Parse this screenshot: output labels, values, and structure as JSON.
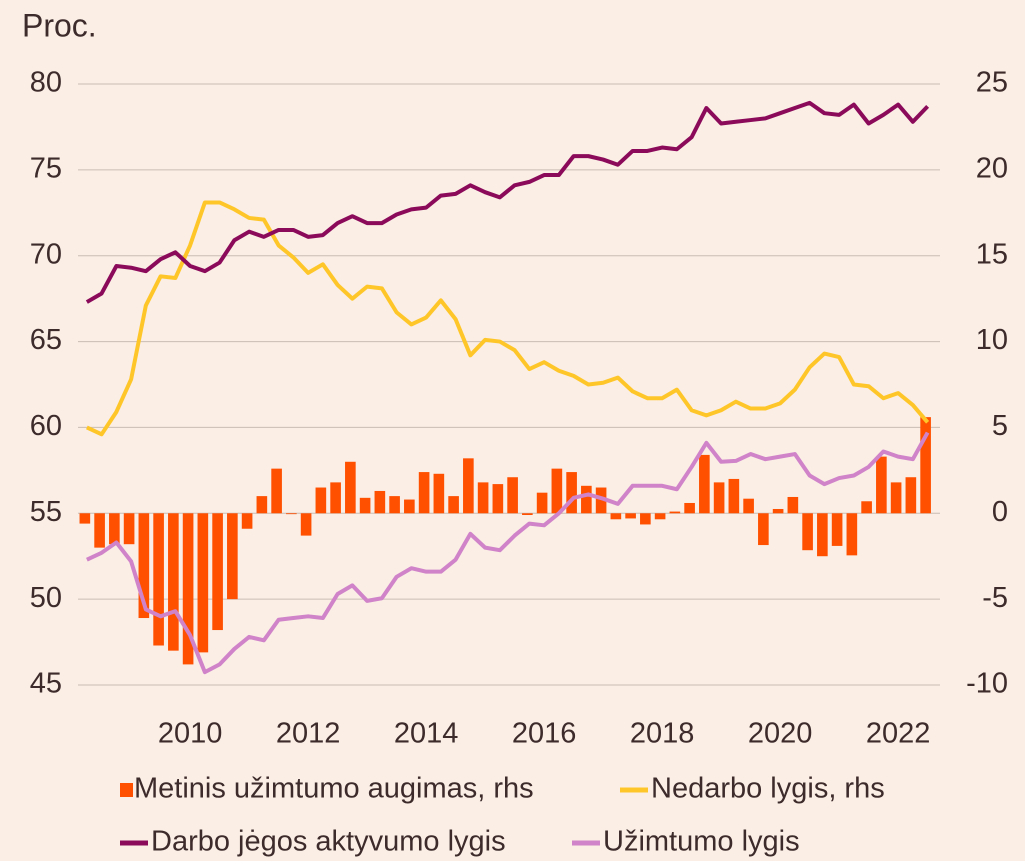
{
  "chart_data": {
    "type": "combo",
    "ylabel": "Proc.",
    "x": [
      2008.25,
      2008.5,
      2008.75,
      2009,
      2009.25,
      2009.5,
      2009.75,
      2010,
      2010.25,
      2010.5,
      2010.75,
      2011,
      2011.25,
      2011.5,
      2011.75,
      2012,
      2012.25,
      2012.5,
      2012.75,
      2013,
      2013.25,
      2013.5,
      2013.75,
      2014,
      2014.25,
      2014.5,
      2014.75,
      2015,
      2015.25,
      2015.5,
      2015.75,
      2016,
      2016.25,
      2016.5,
      2016.75,
      2017,
      2017.25,
      2017.5,
      2017.75,
      2018,
      2018.25,
      2018.5,
      2018.75,
      2019,
      2019.25,
      2019.5,
      2019.75,
      2020,
      2020.25,
      2020.5,
      2020.75,
      2021,
      2021.25,
      2021.5,
      2021.75,
      2022,
      2022.25,
      2022.5
    ],
    "xlim": [
      2008.1,
      2022.71
    ],
    "xticks": [
      2010,
      2012,
      2014,
      2016,
      2018,
      2020,
      2022
    ],
    "ylim": [
      45,
      80
    ],
    "yticks": [
      45,
      50,
      55,
      60,
      65,
      70,
      75,
      80
    ],
    "y2lim": [
      -10,
      25
    ],
    "y2ticks": [
      -10,
      -5,
      0,
      5,
      10,
      15,
      20,
      25
    ],
    "grid": true,
    "series": [
      {
        "name": "Metinis užimtumo augimas, rhs",
        "type": "bar",
        "axis": "y2",
        "color": "#ff5000",
        "values": [
          -0.6,
          -2.0,
          -1.8,
          -1.8,
          -6.1,
          -7.7,
          -8.0,
          -8.8,
          -8.1,
          -6.8,
          -5.0,
          -0.9,
          1.0,
          2.6,
          -0.05,
          -1.3,
          1.5,
          1.8,
          3.0,
          0.9,
          1.3,
          1.0,
          0.8,
          2.4,
          2.3,
          1.0,
          3.2,
          1.8,
          1.7,
          2.1,
          -0.1,
          1.2,
          2.6,
          2.4,
          1.6,
          1.5,
          -0.35,
          -0.3,
          -0.65,
          -0.35,
          0.1,
          0.6,
          3.4,
          1.8,
          2.0,
          0.85,
          -1.85,
          0.25,
          0.95,
          -2.15,
          -2.5,
          -1.9,
          -2.45,
          0.7,
          3.3,
          1.8,
          2.1,
          5.6
        ]
      },
      {
        "name": "Nedarbo lygis, rhs",
        "type": "line",
        "axis": "y2",
        "color": "#ffc629",
        "values": [
          5.0,
          4.6,
          5.9,
          7.8,
          12.1,
          13.8,
          13.7,
          15.6,
          18.1,
          18.1,
          17.7,
          17.2,
          17.1,
          15.6,
          14.9,
          14.0,
          14.5,
          13.3,
          12.5,
          13.2,
          13.1,
          11.7,
          11.0,
          11.4,
          12.4,
          11.3,
          9.2,
          10.1,
          10.0,
          9.5,
          8.4,
          8.8,
          8.3,
          8.0,
          7.5,
          7.6,
          7.9,
          7.1,
          6.7,
          6.7,
          7.2,
          6.0,
          5.7,
          6.0,
          6.5,
          6.1,
          6.1,
          6.4,
          7.2,
          8.5,
          9.3,
          9.1,
          7.5,
          7.4,
          6.7,
          7.0,
          6.3,
          5.3
        ]
      },
      {
        "name": "Darbo jėgos aktyvumo lygis",
        "type": "line",
        "axis": "y",
        "color": "#8b0a5a",
        "values": [
          67.3,
          67.8,
          69.4,
          69.3,
          69.1,
          69.8,
          70.2,
          69.4,
          69.1,
          69.6,
          70.9,
          71.4,
          71.1,
          71.5,
          71.5,
          71.1,
          71.2,
          71.9,
          72.3,
          71.9,
          71.9,
          72.4,
          72.7,
          72.8,
          73.5,
          73.6,
          74.1,
          73.7,
          73.4,
          74.1,
          74.3,
          74.7,
          74.7,
          75.8,
          75.8,
          75.6,
          75.3,
          76.1,
          76.1,
          76.3,
          76.2,
          76.9,
          78.6,
          77.7,
          77.8,
          77.9,
          78.0,
          78.3,
          78.6,
          78.9,
          78.3,
          78.2,
          78.8,
          77.7,
          78.2,
          78.8,
          77.8,
          78.7
        ]
      },
      {
        "name": "Užimtumo lygis",
        "type": "line",
        "axis": "y",
        "color": "#d083c8",
        "values": [
          52.3,
          52.7,
          53.3,
          52.2,
          49.4,
          49.0,
          49.3,
          47.9,
          45.75,
          46.2,
          47.1,
          47.8,
          47.6,
          48.8,
          48.9,
          49.0,
          48.9,
          50.3,
          50.8,
          49.9,
          50.05,
          51.3,
          51.8,
          51.6,
          51.6,
          52.3,
          53.8,
          53.0,
          52.85,
          53.7,
          54.4,
          54.3,
          55.0,
          55.9,
          56.1,
          55.85,
          55.55,
          56.6,
          56.6,
          56.6,
          56.4,
          57.7,
          59.1,
          58.0,
          58.05,
          58.45,
          58.15,
          58.3,
          58.45,
          57.2,
          56.7,
          57.05,
          57.2,
          57.7,
          58.6,
          58.3,
          58.15,
          59.7
        ]
      }
    ]
  }
}
